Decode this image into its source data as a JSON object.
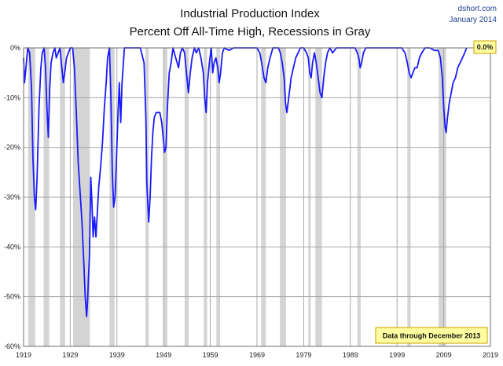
{
  "chart_data": {
    "type": "line",
    "title_line1": "Industrial Production Index",
    "title_line2": "Percent Off All-Time High, Recessions in Gray",
    "source": "dshort.com",
    "date": "January 2014",
    "note": "Data through December 2013",
    "last_value_label": "0.0%",
    "xlim": [
      1919,
      2019
    ],
    "ylim": [
      -60,
      0
    ],
    "x_ticks": [
      1919,
      1929,
      1939,
      1949,
      1959,
      1969,
      1979,
      1989,
      1999,
      2009,
      2019
    ],
    "y_ticks": [
      0,
      -10,
      -20,
      -30,
      -40,
      -50,
      -60
    ],
    "y_tick_labels": [
      "0%",
      "-10%",
      "-20%",
      "-30%",
      "-40%",
      "-50%",
      "-60%"
    ],
    "grid": true,
    "colors": {
      "line": "#1a1aff",
      "recession": "#d4d4d4",
      "grid": "#a8a8a8",
      "label_box": "#fffea0",
      "label_border": "#c8a000"
    },
    "recessions": [
      [
        1920.0,
        1921.5
      ],
      [
        1923.3,
        1924.5
      ],
      [
        1926.8,
        1927.9
      ],
      [
        1929.6,
        1933.2
      ],
      [
        1937.4,
        1938.5
      ],
      [
        1945.1,
        1945.8
      ],
      [
        1948.9,
        1949.8
      ],
      [
        1953.5,
        1954.4
      ],
      [
        1957.6,
        1958.3
      ],
      [
        1960.3,
        1961.1
      ],
      [
        1969.9,
        1970.9
      ],
      [
        1973.9,
        1975.2
      ],
      [
        1980.0,
        1980.5
      ],
      [
        1981.5,
        1982.9
      ],
      [
        1990.5,
        1991.2
      ],
      [
        2001.2,
        2001.9
      ],
      [
        2007.9,
        2009.5
      ]
    ],
    "series": [
      {
        "x": [
          1919.0,
          1919.2,
          1919.4,
          1919.6,
          1919.9,
          1920.3,
          1920.7,
          1921.0,
          1921.3,
          1921.6,
          1921.9,
          1922.3,
          1922.7,
          1923.0,
          1923.4,
          1923.7,
          1924.0,
          1924.3,
          1924.6,
          1924.9,
          1925.3,
          1925.7,
          1926.0,
          1926.4,
          1926.8,
          1927.2,
          1927.5,
          1927.8,
          1928.2,
          1928.6,
          1929.0,
          1929.5,
          1929.9,
          1930.3,
          1930.7,
          1931.1,
          1931.5,
          1931.9,
          1932.2,
          1932.5,
          1932.7,
          1932.9,
          1933.1,
          1933.4,
          1933.6,
          1933.9,
          1934.2,
          1934.5,
          1934.8,
          1935.1,
          1935.5,
          1935.9,
          1936.3,
          1936.7,
          1937.0,
          1937.4,
          1937.7,
          1938.0,
          1938.3,
          1938.6,
          1938.9,
          1939.2,
          1939.5,
          1939.8,
          1940.1,
          1940.6,
          1941.2,
          1942.0,
          1943.0,
          1944.0,
          1944.8,
          1945.2,
          1945.4,
          1945.6,
          1945.8,
          1946.1,
          1946.4,
          1946.7,
          1947.0,
          1947.4,
          1947.8,
          1948.2,
          1948.6,
          1948.9,
          1949.2,
          1949.5,
          1949.8,
          1950.2,
          1950.6,
          1951.0,
          1951.6,
          1952.2,
          1952.6,
          1953.0,
          1953.5,
          1953.9,
          1954.3,
          1954.7,
          1955.1,
          1955.6,
          1956.0,
          1956.5,
          1957.0,
          1957.5,
          1957.8,
          1958.1,
          1958.4,
          1958.8,
          1959.2,
          1959.5,
          1959.8,
          1960.2,
          1960.6,
          1960.9,
          1961.2,
          1961.6,
          1962.0,
          1963.0,
          1964.0,
          1965.0,
          1966.0,
          1967.0,
          1968.0,
          1969.0,
          1969.6,
          1970.0,
          1970.5,
          1970.9,
          1971.3,
          1971.8,
          1972.4,
          1973.0,
          1973.6,
          1974.0,
          1974.4,
          1974.8,
          1975.1,
          1975.4,
          1975.8,
          1976.3,
          1976.8,
          1977.3,
          1977.8,
          1978.3,
          1979.0,
          1979.6,
          1980.0,
          1980.3,
          1980.6,
          1980.9,
          1981.3,
          1981.7,
          1982.1,
          1982.5,
          1982.9,
          1983.3,
          1983.7,
          1984.1,
          1984.6,
          1985.2,
          1986.0,
          1987.0,
          1988.0,
          1989.0,
          1990.0,
          1990.5,
          1990.8,
          1991.1,
          1991.4,
          1991.8,
          1992.3,
          1993.0,
          1994.0,
          1995.0,
          1996.0,
          1997.0,
          1998.0,
          1999.0,
          2000.0,
          2000.7,
          2001.2,
          2001.6,
          2002.0,
          2002.4,
          2002.8,
          2003.3,
          2003.8,
          2004.3,
          2005.0,
          2006.0,
          2007.0,
          2007.8,
          2008.3,
          2008.7,
          2009.0,
          2009.3,
          2009.5,
          2009.8,
          2010.2,
          2010.6,
          2011.0,
          2011.5,
          2012.0,
          2012.5,
          2013.0,
          2013.5,
          2013.9
        ],
        "y": [
          -2.0,
          -7.0,
          -5.0,
          -3.0,
          0.0,
          -1.0,
          -8.0,
          -22.0,
          -30.0,
          -32.5,
          -26.0,
          -12.0,
          -4.0,
          -1.0,
          0.0,
          -4.0,
          -12.0,
          -18.0,
          -8.0,
          -3.0,
          -1.0,
          0.0,
          -2.0,
          -1.0,
          0.0,
          -4.0,
          -7.0,
          -5.0,
          -2.0,
          -1.0,
          0.0,
          0.0,
          -4.0,
          -13.0,
          -23.0,
          -29.0,
          -35.0,
          -43.0,
          -50.0,
          -54.0,
          -51.0,
          -46.0,
          -42.0,
          -26.0,
          -30.0,
          -38.0,
          -34.0,
          -38.0,
          -33.0,
          -28.0,
          -24.0,
          -19.0,
          -12.0,
          -7.0,
          -2.0,
          0.0,
          -10.0,
          -25.0,
          -32.0,
          -30.0,
          -22.0,
          -14.0,
          -7.0,
          -15.0,
          -7.0,
          0.0,
          0.0,
          0.0,
          0.0,
          0.0,
          -3.0,
          -14.0,
          -27.0,
          -31.0,
          -35.0,
          -30.0,
          -22.0,
          -17.0,
          -14.0,
          -13.0,
          -13.0,
          -13.0,
          -15.0,
          -18.0,
          -21.0,
          -20.0,
          -12.0,
          -5.0,
          -3.0,
          0.0,
          -2.0,
          -4.0,
          -1.0,
          0.0,
          -1.0,
          -5.0,
          -9.0,
          -5.0,
          -2.0,
          0.0,
          -1.0,
          0.0,
          -2.0,
          -5.0,
          -10.0,
          -13.0,
          -7.0,
          -3.0,
          0.0,
          -5.0,
          -3.0,
          -2.0,
          -4.0,
          -7.0,
          -5.0,
          -1.0,
          0.0,
          -0.5,
          0.0,
          0.0,
          0.0,
          0.0,
          0.0,
          0.0,
          -1.0,
          -3.0,
          -6.0,
          -7.0,
          -4.0,
          -2.0,
          0.0,
          0.0,
          0.0,
          -1.0,
          -3.0,
          -6.0,
          -11.0,
          -13.0,
          -10.0,
          -6.0,
          -4.0,
          -2.0,
          -1.0,
          0.0,
          0.0,
          -1.0,
          -2.0,
          -5.0,
          -6.0,
          -3.0,
          -1.0,
          -3.0,
          -6.0,
          -9.0,
          -10.0,
          -6.0,
          -3.0,
          -1.0,
          0.0,
          -1.0,
          0.0,
          0.0,
          0.0,
          0.0,
          0.0,
          -1.0,
          -2.0,
          -4.0,
          -3.0,
          -1.0,
          0.0,
          0.0,
          0.0,
          0.0,
          0.0,
          0.0,
          0.0,
          0.0,
          0.0,
          -1.0,
          -3.0,
          -5.0,
          -6.0,
          -5.0,
          -4.0,
          -4.0,
          -2.0,
          -1.0,
          0.0,
          0.0,
          -0.5,
          -0.5,
          -2.0,
          -6.0,
          -12.0,
          -16.0,
          -17.0,
          -14.0,
          -11.0,
          -9.0,
          -7.0,
          -6.0,
          -4.0,
          -3.0,
          -2.0,
          -1.0,
          0.0
        ]
      }
    ]
  }
}
